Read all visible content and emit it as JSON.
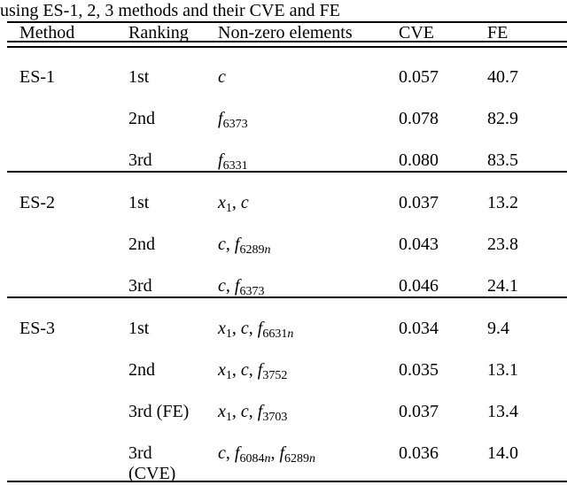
{
  "caption": "using ES-1, 2, 3 methods and their CVE and FE",
  "colors": {
    "text": "#000000",
    "background": "#ffffff"
  },
  "table": {
    "headers": [
      "Method",
      "Ranking",
      "Non-zero elements",
      "CVE",
      "FE"
    ],
    "groups": [
      {
        "method": "ES-1",
        "rows": [
          {
            "ranking": [
              "1st"
            ],
            "elements": [
              {
                "var": "c"
              }
            ],
            "cve": "0.057",
            "fe": "40.7"
          },
          {
            "ranking": [
              "2nd"
            ],
            "elements": [
              {
                "var": "f",
                "sub": "6373"
              }
            ],
            "cve": "0.078",
            "fe": "82.9"
          },
          {
            "ranking": [
              "3rd"
            ],
            "elements": [
              {
                "var": "f",
                "sub": "6331"
              }
            ],
            "cve": "0.080",
            "fe": "83.5"
          }
        ]
      },
      {
        "method": "ES-2",
        "rows": [
          {
            "ranking": [
              "1st"
            ],
            "elements": [
              {
                "var": "x",
                "sub": "1"
              },
              {
                "var": "c"
              }
            ],
            "cve": "0.037",
            "fe": "13.2"
          },
          {
            "ranking": [
              "2nd"
            ],
            "elements": [
              {
                "var": "c"
              },
              {
                "var": "f",
                "sub": "6289n"
              }
            ],
            "cve": "0.043",
            "fe": "23.8"
          },
          {
            "ranking": [
              "3rd"
            ],
            "elements": [
              {
                "var": "c"
              },
              {
                "var": "f",
                "sub": "6373"
              }
            ],
            "cve": "0.046",
            "fe": "24.1"
          }
        ]
      },
      {
        "method": "ES-3",
        "rows": [
          {
            "ranking": [
              "1st"
            ],
            "elements": [
              {
                "var": "x",
                "sub": "1"
              },
              {
                "var": "c"
              },
              {
                "var": "f",
                "sub": "6631n"
              }
            ],
            "cve": "0.034",
            "fe": "9.4"
          },
          {
            "ranking": [
              "2nd"
            ],
            "elements": [
              {
                "var": "x",
                "sub": "1"
              },
              {
                "var": "c"
              },
              {
                "var": "f",
                "sub": "3752"
              }
            ],
            "cve": "0.035",
            "fe": "13.1"
          },
          {
            "ranking": [
              "3rd (FE)"
            ],
            "elements": [
              {
                "var": "x",
                "sub": "1"
              },
              {
                "var": "c"
              },
              {
                "var": "f",
                "sub": "3703"
              }
            ],
            "cve": "0.037",
            "fe": "13.4"
          },
          {
            "ranking": [
              "3rd",
              "(CVE)"
            ],
            "elements": [
              {
                "var": "c"
              },
              {
                "var": "f",
                "sub": "6084n"
              },
              {
                "var": "f",
                "sub": "6289n"
              }
            ],
            "cve": "0.036",
            "fe": "14.0"
          }
        ]
      }
    ]
  }
}
